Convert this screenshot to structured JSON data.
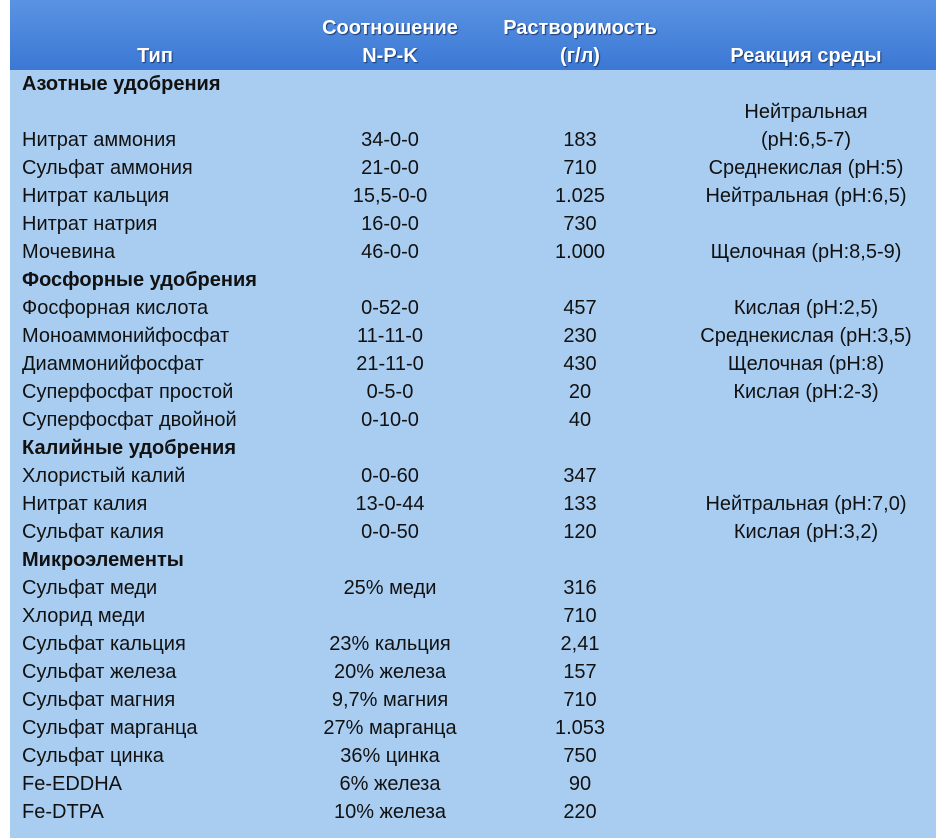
{
  "header": {
    "type": "Тип",
    "npk": [
      "Соотношение",
      "N-P-K"
    ],
    "solubility": [
      "Растворимость",
      "(г/л)"
    ],
    "reaction": "Реакция среды"
  },
  "sections": [
    {
      "title": "Азотные удобрения",
      "rows": [
        [
          "Нитрат аммония",
          "34-0-0",
          "183",
          [
            "Нейтральная",
            "(pH:6,5-7)"
          ]
        ],
        [
          "Сульфат аммония",
          "21-0-0",
          "710",
          "Среднекислая (pH:5)"
        ],
        [
          "Нитрат кальция",
          "15,5-0-0",
          "1.025",
          "Нейтральная (pH:6,5)"
        ],
        [
          "Нитрат натрия",
          "16-0-0",
          "730",
          null
        ],
        [
          "Мочевина",
          "46-0-0",
          "1.000",
          "Щелочная (pH:8,5-9)"
        ]
      ]
    },
    {
      "title": "Фосфорные удобрения",
      "rows": [
        [
          "Фосфорная кислота",
          "0-52-0",
          "457",
          "Кислая (pH:2,5)"
        ],
        [
          "Моноаммонийфосфат",
          "11-11-0",
          "230",
          "Среднекислая (pH:3,5)"
        ],
        [
          "Диаммонийфосфат",
          "21-11-0",
          "430",
          "Щелочная (pH:8)"
        ],
        [
          "Суперфосфат простой",
          "0-5-0",
          "20",
          "Кислая (pH:2-3)"
        ],
        [
          "Суперфосфат двойной",
          "0-10-0",
          "40",
          null
        ]
      ]
    },
    {
      "title": "Калийные удобрения",
      "rows": [
        [
          "Хлористый калий",
          "0-0-60",
          "347",
          null
        ],
        [
          "Нитрат калия",
          "13-0-44",
          "133",
          "Нейтральная (pH:7,0)"
        ],
        [
          "Сульфат калия",
          "0-0-50",
          "120",
          "Кислая (pH:3,2)"
        ]
      ]
    },
    {
      "title": "Микроэлементы",
      "rows": [
        [
          "Сульфат меди",
          "25% меди",
          "316",
          null
        ],
        [
          "Хлорид меди",
          null,
          "710",
          null
        ],
        [
          "Сульфат кальция",
          "23% кальция",
          "2,41",
          null
        ],
        [
          "Сульфат железа",
          "20% железа",
          "157",
          null
        ],
        [
          "Сульфат магния",
          "9,7% магния",
          "710",
          null
        ],
        [
          "Сульфат марганца",
          "27% марганца",
          "1.053",
          null
        ],
        [
          "Сульфат цинка",
          "36% цинка",
          "750",
          null
        ],
        [
          "Fe-EDDHA",
          "6% железа",
          "90",
          null
        ],
        [
          "Fe-DTPA",
          "10% железа",
          "220",
          null
        ]
      ]
    }
  ]
}
